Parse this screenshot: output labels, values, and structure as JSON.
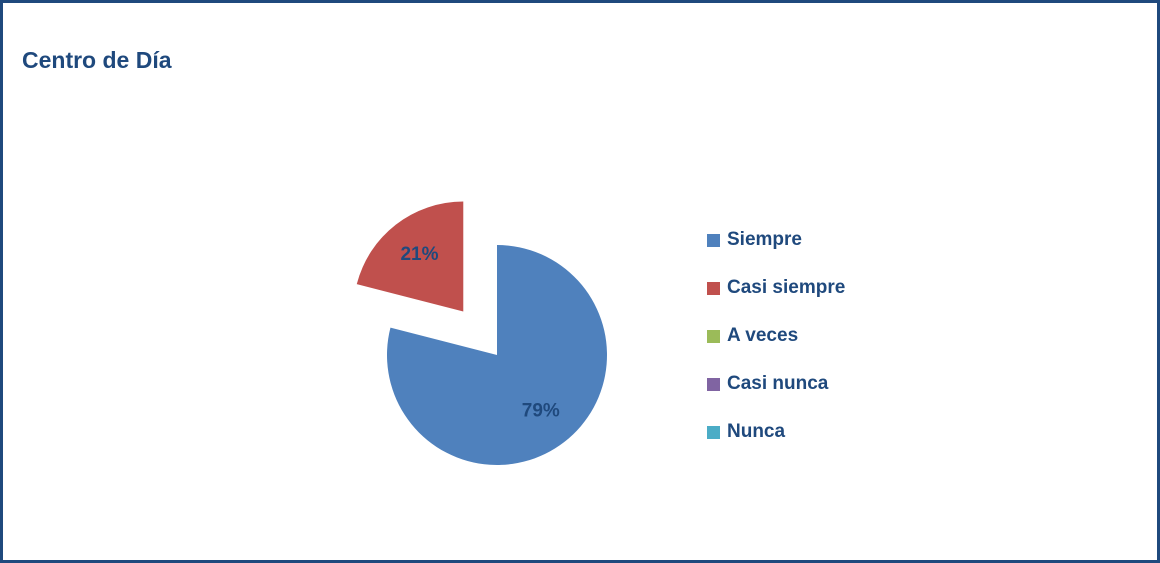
{
  "chart_data": {
    "type": "pie",
    "title": "Centro de Día",
    "categories": [
      "Siempre",
      "Casi siempre",
      "A veces",
      "Casi nunca",
      "Nunca"
    ],
    "values": [
      79,
      21,
      0,
      0,
      0
    ],
    "value_labels": [
      "79%",
      "21%",
      null,
      null,
      null
    ],
    "colors": [
      "#4f81bd",
      "#c0504d",
      "#9bbb59",
      "#8064a2",
      "#4bacc6"
    ],
    "explode": [
      false,
      true,
      false,
      false,
      false
    ],
    "legend": "right"
  }
}
